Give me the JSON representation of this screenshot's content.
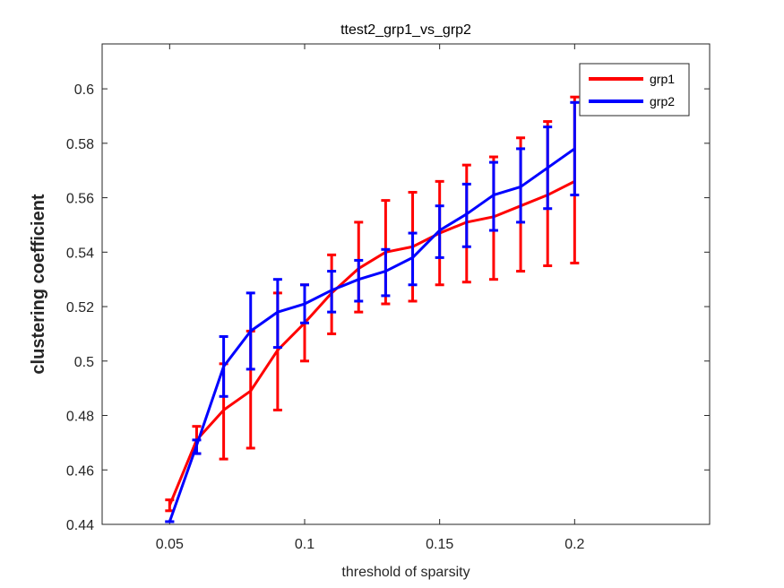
{
  "chart_data": {
    "type": "line",
    "title": "ttest2_grp1_vs_grp2",
    "xlabel": "threshold of sparsity",
    "ylabel": "clustering coefficient",
    "xlim": [
      0.025,
      0.25
    ],
    "ylim": [
      0.44,
      0.6165
    ],
    "xticks": [
      0.05,
      0.1,
      0.15,
      0.2
    ],
    "xtick_labels": [
      "0.05",
      "0.1",
      "0.15",
      "0.2"
    ],
    "yticks": [
      0.44,
      0.46,
      0.48,
      0.5,
      0.52,
      0.54,
      0.56,
      0.58,
      0.6
    ],
    "ytick_labels": [
      "0.44",
      "0.46",
      "0.48",
      "0.5",
      "0.52",
      "0.54",
      "0.56",
      "0.58",
      "0.6"
    ],
    "grid": false,
    "legend_position": "top-right",
    "x": [
      0.05,
      0.06,
      0.07,
      0.08,
      0.09,
      0.1,
      0.11,
      0.12,
      0.13,
      0.14,
      0.15,
      0.16,
      0.17,
      0.18,
      0.19,
      0.2
    ],
    "series": [
      {
        "name": "grp1",
        "color": "#ff0000",
        "values": [
          0.447,
          0.471,
          0.482,
          0.489,
          0.504,
          0.514,
          0.525,
          0.534,
          0.54,
          0.542,
          0.547,
          0.551,
          0.553,
          0.557,
          0.561,
          0.566
        ],
        "err_low": [
          0.445,
          0.466,
          0.464,
          0.468,
          0.482,
          0.5,
          0.51,
          0.518,
          0.521,
          0.522,
          0.528,
          0.529,
          0.53,
          0.533,
          0.535,
          0.536
        ],
        "err_high": [
          0.449,
          0.476,
          0.499,
          0.511,
          0.525,
          0.528,
          0.539,
          0.551,
          0.559,
          0.562,
          0.566,
          0.572,
          0.575,
          0.582,
          0.588,
          0.597
        ]
      },
      {
        "name": "grp2",
        "color": "#0000ff",
        "values": [
          0.441,
          0.469,
          0.498,
          0.511,
          0.518,
          0.521,
          0.526,
          0.53,
          0.533,
          0.538,
          0.548,
          0.554,
          0.561,
          0.564,
          0.571,
          0.578
        ],
        "err_low": [
          0.441,
          0.466,
          0.487,
          0.497,
          0.505,
          0.514,
          0.518,
          0.522,
          0.524,
          0.528,
          0.538,
          0.542,
          0.548,
          0.551,
          0.556,
          0.561
        ],
        "err_high": [
          0.441,
          0.471,
          0.509,
          0.525,
          0.53,
          0.528,
          0.533,
          0.537,
          0.541,
          0.547,
          0.557,
          0.565,
          0.573,
          0.578,
          0.586,
          0.595
        ]
      }
    ]
  }
}
